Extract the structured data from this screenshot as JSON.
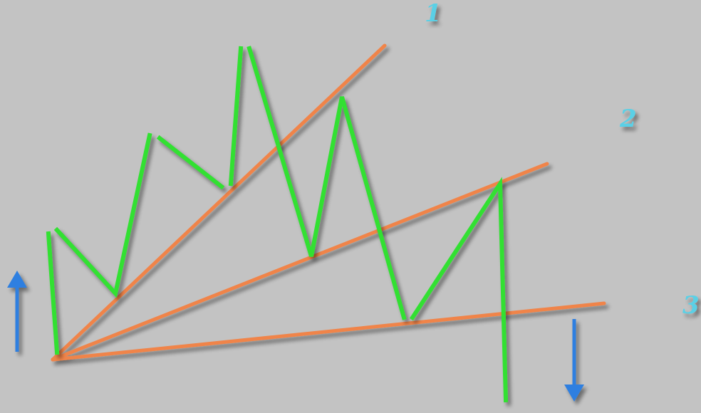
{
  "diagram": {
    "colors": {
      "background": "#c3c3c3",
      "price_path": "#33e033",
      "fan_lines": "#f0844a",
      "labels": "#5ad0e6",
      "arrows": "#2f7fe0"
    },
    "fan_line_labels": [
      {
        "id": "fan-line-1",
        "text": "1"
      },
      {
        "id": "fan-line-2",
        "text": "2"
      },
      {
        "id": "fan-line-3",
        "text": "3"
      }
    ],
    "arrows": [
      {
        "id": "up-arrow",
        "direction": "up",
        "icon": "arrow-up-icon"
      },
      {
        "id": "down-arrow",
        "direction": "down",
        "icon": "arrow-down-icon"
      }
    ]
  }
}
